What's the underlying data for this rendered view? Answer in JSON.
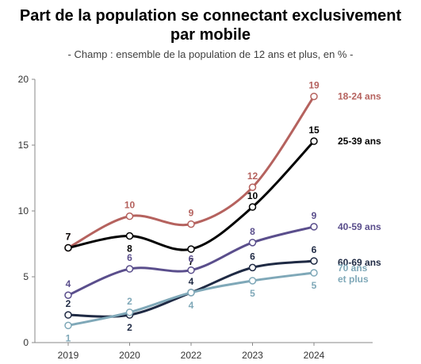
{
  "title_line1": "Part de la population se connectant exclusivement",
  "title_line2": "par mobile",
  "subtitle": "- Champ : ensemble de la population de 12 ans et plus, en % -",
  "chart_data": {
    "type": "line",
    "title": "Part de la population se connectant exclusivement par mobile",
    "subtitle": "- Champ : ensemble de la population de 12 ans et plus, en % -",
    "xlabel": "",
    "ylabel": "",
    "categories": [
      "2019",
      "2020",
      "2022",
      "2023",
      "2024"
    ],
    "ylim": [
      0,
      20
    ],
    "yticks": [
      0,
      5,
      10,
      15,
      20
    ],
    "grid": false,
    "legend": "right, inline labels at line ends",
    "series": [
      {
        "name": "18-24 ans",
        "color": "#b5625e",
        "values": [
          7.2,
          9.6,
          9.0,
          11.8,
          18.7
        ],
        "labels": [
          "7",
          "10",
          "9",
          "12",
          "19"
        ]
      },
      {
        "name": "25-39 ans",
        "color": "#000000",
        "values": [
          7.2,
          8.1,
          7.1,
          10.3,
          15.3
        ],
        "labels": [
          "7",
          "8",
          "7",
          "10",
          "15"
        ]
      },
      {
        "name": "40-59 ans",
        "color": "#5a4e8c",
        "values": [
          3.6,
          5.6,
          5.5,
          7.6,
          8.8
        ],
        "labels": [
          "4",
          "6",
          "6",
          "8",
          "9"
        ]
      },
      {
        "name": "60-69 ans",
        "color": "#1f2a44",
        "values": [
          2.1,
          2.1,
          3.8,
          5.7,
          6.2
        ],
        "labels": [
          "2",
          "2",
          "4",
          "6",
          "6"
        ]
      },
      {
        "name": "70 ans et plus",
        "name_lines": [
          "70 ans",
          "et plus"
        ],
        "color": "#7fa8b8",
        "values": [
          1.3,
          2.3,
          3.8,
          4.7,
          5.3
        ],
        "labels": [
          "1",
          "2",
          "4",
          "5",
          "5"
        ]
      }
    ]
  }
}
